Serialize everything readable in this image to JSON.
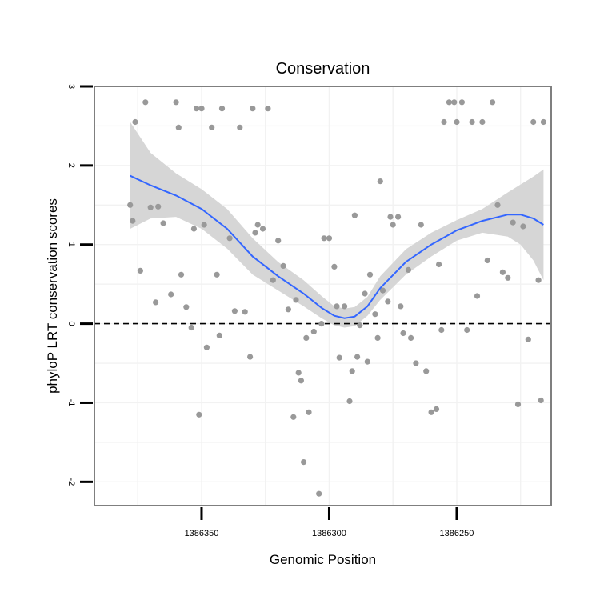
{
  "chart_data": {
    "type": "scatter",
    "title": "Conservation",
    "xlabel": "Genomic Position",
    "ylabel": "phyloP LRT conservation scores",
    "x_reversed": true,
    "xlim": [
      1386213,
      1386392
    ],
    "ylim": [
      -2.3,
      3.0
    ],
    "x_ticks": [
      1386350,
      1386300,
      1386250
    ],
    "x_tick_labels": [
      "1386350",
      "1386300",
      "1386250"
    ],
    "y_ticks": [
      -2,
      -1,
      0,
      1,
      2,
      3
    ],
    "y_tick_labels": [
      "-2",
      "-1",
      "0",
      "1",
      "2",
      "3"
    ],
    "reference_line_y": 0,
    "grid": true,
    "legend": "none",
    "colors": {
      "points": "#999999",
      "smooth_line": "#3366ff",
      "confidence_band": "#d4d4d4",
      "panel_border": "#7f7f7f",
      "grid": "#f2f2f2"
    },
    "series": [
      {
        "kind": "points",
        "x": [
          1386378,
          1386377,
          1386376,
          1386374,
          1386372,
          1386370,
          1386368,
          1386367,
          1386365,
          1386362,
          1386360,
          1386359,
          1386358,
          1386356,
          1386354,
          1386353,
          1386352,
          1386351,
          1386350,
          1386349,
          1386348,
          1386346,
          1386344,
          1386343,
          1386342,
          1386339,
          1386337,
          1386335,
          1386333,
          1386331,
          1386330,
          1386329,
          1386328,
          1386326,
          1386324,
          1386322,
          1386320,
          1386318,
          1386316,
          1386314,
          1386313,
          1386312,
          1386311,
          1386310,
          1386309,
          1386308,
          1386306,
          1386304,
          1386303,
          1386302,
          1386300,
          1386298,
          1386297,
          1386296,
          1386294,
          1386292,
          1386291,
          1386290,
          1386289,
          1386288,
          1386286,
          1386285,
          1386284,
          1386282,
          1386281,
          1386280,
          1386279,
          1386277,
          1386276,
          1386275,
          1386273,
          1386272,
          1386271,
          1386269,
          1386268,
          1386266,
          1386264,
          1386262,
          1386260,
          1386258,
          1386257,
          1386256,
          1386255,
          1386253,
          1386251,
          1386250,
          1386248,
          1386246,
          1386244,
          1386242,
          1386240,
          1386238,
          1386236,
          1386234,
          1386232,
          1386230,
          1386228,
          1386226,
          1386224,
          1386222,
          1386220,
          1386218,
          1386217,
          1386216
        ],
        "y": [
          1.5,
          1.3,
          2.55,
          0.67,
          2.8,
          1.47,
          0.27,
          1.48,
          1.27,
          0.37,
          2.8,
          2.48,
          0.62,
          0.21,
          -0.05,
          1.2,
          2.72,
          -1.15,
          2.72,
          1.25,
          -0.3,
          2.48,
          0.62,
          -0.15,
          2.72,
          1.08,
          0.16,
          2.48,
          0.15,
          -0.42,
          2.72,
          1.15,
          1.25,
          1.2,
          2.72,
          0.55,
          1.05,
          0.73,
          0.18,
          -1.18,
          0.3,
          -0.62,
          -0.72,
          -1.75,
          -0.18,
          -1.12,
          -0.1,
          -2.15,
          0.0,
          1.08,
          1.08,
          0.72,
          0.22,
          -0.43,
          0.22,
          -0.98,
          -0.6,
          1.37,
          -0.42,
          -0.02,
          0.38,
          -0.48,
          0.62,
          0.12,
          -0.18,
          1.8,
          0.42,
          0.28,
          1.35,
          1.25,
          1.35,
          0.22,
          -0.12,
          0.68,
          -0.18,
          -0.5,
          1.25,
          -0.6,
          -1.12,
          -1.08,
          0.75,
          -0.08,
          2.55,
          2.8,
          2.8,
          2.55,
          2.8,
          -0.08,
          2.55,
          0.35,
          2.55,
          0.8,
          2.8,
          1.5,
          0.65,
          0.58,
          1.28,
          -1.02,
          1.23,
          -0.2,
          2.55,
          0.55,
          -0.97,
          2.55
        ],
        "color": "#999999"
      },
      {
        "kind": "smooth",
        "x": [
          1386378,
          1386370,
          1386360,
          1386350,
          1386340,
          1386330,
          1386320,
          1386310,
          1386303,
          1386298,
          1386294,
          1386290,
          1386285,
          1386280,
          1386270,
          1386260,
          1386250,
          1386240,
          1386230,
          1386225,
          1386220,
          1386216
        ],
        "y": [
          1.87,
          1.75,
          1.62,
          1.45,
          1.2,
          0.85,
          0.6,
          0.38,
          0.2,
          0.1,
          0.07,
          0.09,
          0.22,
          0.45,
          0.78,
          1.0,
          1.18,
          1.3,
          1.38,
          1.38,
          1.33,
          1.25
        ],
        "ymin": [
          1.2,
          1.33,
          1.35,
          1.2,
          0.95,
          0.62,
          0.42,
          0.22,
          0.07,
          -0.02,
          -0.05,
          -0.03,
          0.1,
          0.3,
          0.62,
          0.85,
          1.05,
          1.15,
          1.1,
          1.0,
          0.8,
          0.55
        ],
        "ymax": [
          2.55,
          2.16,
          1.9,
          1.7,
          1.45,
          1.08,
          0.78,
          0.55,
          0.35,
          0.22,
          0.19,
          0.21,
          0.34,
          0.6,
          0.94,
          1.15,
          1.31,
          1.45,
          1.66,
          1.76,
          1.86,
          1.95
        ],
        "color": "#3366ff",
        "band_color": "#d4d4d4"
      }
    ]
  }
}
